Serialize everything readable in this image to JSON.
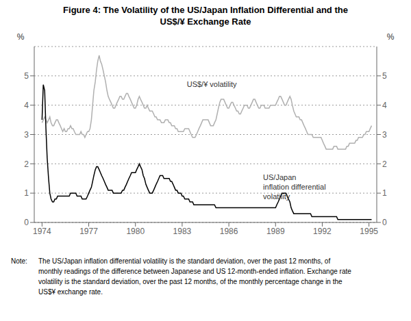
{
  "chart_data": {
    "type": "line",
    "title": "Figure 4: The Volatility of the US/Japan Inflation Differential and the\nUS$/¥ Exchange Rate",
    "ylabel": "%",
    "y2label": "%",
    "xlim": [
      1973.5,
      1995.5
    ],
    "xticks": [
      1974,
      1977,
      1980,
      1983,
      1986,
      1989,
      1992,
      1995
    ],
    "ylim": [
      0,
      6
    ],
    "yticks": [
      0,
      1,
      2,
      3,
      4,
      5
    ],
    "y2lim": [
      0,
      6
    ],
    "y2ticks": [
      0,
      1,
      2,
      3,
      4,
      5
    ],
    "grid": true,
    "annotations": [
      {
        "text": "US$/¥ volatility",
        "x": 1983.3,
        "y": 4.55
      },
      {
        "text": "US/Japan\ninflation differential\nvolatility",
        "x": 1988.2,
        "y": 1.7
      }
    ],
    "footnote": {
      "label": "Note:",
      "lines": [
        "The US/Japan inflation differential volatility is the standard deviation, over the past 12 months, of",
        "monthly readings of the difference between Japanese and US 12-month-ended inflation. Exchange rate",
        "volatility is the standard deviation, over the past 12 months, of the monthly percentage change in the",
        "US$¥ exchange rate."
      ]
    },
    "x": [
      1974.0,
      1974.08,
      1974.17,
      1974.25,
      1974.33,
      1974.42,
      1974.5,
      1974.58,
      1974.67,
      1974.75,
      1974.83,
      1974.92,
      1975.0,
      1975.08,
      1975.17,
      1975.25,
      1975.33,
      1975.42,
      1975.5,
      1975.58,
      1975.67,
      1975.75,
      1975.83,
      1975.92,
      1976.0,
      1976.08,
      1976.17,
      1976.25,
      1976.33,
      1976.42,
      1976.5,
      1976.58,
      1976.67,
      1976.75,
      1976.83,
      1976.92,
      1977.0,
      1977.08,
      1977.17,
      1977.25,
      1977.33,
      1977.42,
      1977.5,
      1977.58,
      1977.67,
      1977.75,
      1977.83,
      1977.92,
      1978.0,
      1978.08,
      1978.17,
      1978.25,
      1978.33,
      1978.42,
      1978.5,
      1978.58,
      1978.67,
      1978.75,
      1978.83,
      1978.92,
      1979.0,
      1979.08,
      1979.17,
      1979.25,
      1979.33,
      1979.42,
      1979.5,
      1979.58,
      1979.67,
      1979.75,
      1979.83,
      1979.92,
      1980.0,
      1980.08,
      1980.17,
      1980.25,
      1980.33,
      1980.42,
      1980.5,
      1980.58,
      1980.67,
      1980.75,
      1980.83,
      1980.92,
      1981.0,
      1981.08,
      1981.17,
      1981.25,
      1981.33,
      1981.42,
      1981.5,
      1981.58,
      1981.67,
      1981.75,
      1981.83,
      1981.92,
      1982.0,
      1982.08,
      1982.17,
      1982.25,
      1982.33,
      1982.42,
      1982.5,
      1982.58,
      1982.67,
      1982.75,
      1982.83,
      1982.92,
      1983.0,
      1983.08,
      1983.17,
      1983.25,
      1983.33,
      1983.42,
      1983.5,
      1983.58,
      1983.67,
      1983.75,
      1983.83,
      1983.92,
      1984.0,
      1984.08,
      1984.17,
      1984.25,
      1984.33,
      1984.42,
      1984.5,
      1984.58,
      1984.67,
      1984.75,
      1984.83,
      1984.92,
      1985.0,
      1985.08,
      1985.17,
      1985.25,
      1985.33,
      1985.42,
      1985.5,
      1985.58,
      1985.67,
      1985.75,
      1985.83,
      1985.92,
      1986.0,
      1986.08,
      1986.17,
      1986.25,
      1986.33,
      1986.42,
      1986.5,
      1986.58,
      1986.67,
      1986.75,
      1986.83,
      1986.92,
      1987.0,
      1987.08,
      1987.17,
      1987.25,
      1987.33,
      1987.42,
      1987.5,
      1987.58,
      1987.67,
      1987.75,
      1987.83,
      1987.92,
      1988.0,
      1988.08,
      1988.17,
      1988.25,
      1988.33,
      1988.42,
      1988.5,
      1988.58,
      1988.67,
      1988.75,
      1988.83,
      1988.92,
      1989.0,
      1989.08,
      1989.17,
      1989.25,
      1989.33,
      1989.42,
      1989.5,
      1989.58,
      1989.67,
      1989.75,
      1989.83,
      1989.92,
      1990.0,
      1990.08,
      1990.17,
      1990.25,
      1990.33,
      1990.42,
      1990.5,
      1990.58,
      1990.67,
      1990.75,
      1990.83,
      1990.92,
      1991.0,
      1991.08,
      1991.17,
      1991.25,
      1991.33,
      1991.42,
      1991.5,
      1991.58,
      1991.67,
      1991.75,
      1991.83,
      1991.92,
      1992.0,
      1992.08,
      1992.17,
      1992.25,
      1992.33,
      1992.42,
      1992.5,
      1992.58,
      1992.67,
      1992.75,
      1992.83,
      1992.92,
      1993.0,
      1993.08,
      1993.17,
      1993.25,
      1993.33,
      1993.42,
      1993.5,
      1993.58,
      1993.67,
      1993.75,
      1993.83,
      1993.92,
      1994.0,
      1994.08,
      1994.17,
      1994.25,
      1994.33,
      1994.42,
      1994.5,
      1994.58,
      1994.67,
      1994.75,
      1994.83,
      1994.92,
      1995.0,
      1995.08,
      1995.17
    ],
    "series": [
      {
        "color": "#b0b0b0",
        "values": [
          3.4,
          3.5,
          3.6,
          3.5,
          3.4,
          3.5,
          3.6,
          3.4,
          3.3,
          3.3,
          3.4,
          3.5,
          3.5,
          3.4,
          3.3,
          3.2,
          3.1,
          3.2,
          3.1,
          3.1,
          3.2,
          3.2,
          3.3,
          3.2,
          3.2,
          3.1,
          3.0,
          3.0,
          3.0,
          3.0,
          3.1,
          3.0,
          3.0,
          2.9,
          3.0,
          3.1,
          3.1,
          3.2,
          3.5,
          4.0,
          4.5,
          4.8,
          5.2,
          5.5,
          5.7,
          5.5,
          5.4,
          5.2,
          5.0,
          4.8,
          4.5,
          4.3,
          4.2,
          4.1,
          4.0,
          3.9,
          3.9,
          4.0,
          4.1,
          4.2,
          4.3,
          4.3,
          4.2,
          4.2,
          4.3,
          4.4,
          4.4,
          4.3,
          4.2,
          4.1,
          4.0,
          3.9,
          3.9,
          4.0,
          4.2,
          4.3,
          4.2,
          4.1,
          4.0,
          3.9,
          3.9,
          4.0,
          3.9,
          3.8,
          3.8,
          3.8,
          3.7,
          3.6,
          3.6,
          3.5,
          3.5,
          3.5,
          3.4,
          3.4,
          3.4,
          3.5,
          3.5,
          3.5,
          3.4,
          3.4,
          3.3,
          3.3,
          3.3,
          3.2,
          3.2,
          3.1,
          3.1,
          3.1,
          3.1,
          3.1,
          3.2,
          3.2,
          3.2,
          3.2,
          3.1,
          3.0,
          2.9,
          2.9,
          2.9,
          3.0,
          3.1,
          3.2,
          3.3,
          3.4,
          3.5,
          3.5,
          3.5,
          3.5,
          3.5,
          3.4,
          3.3,
          3.3,
          3.3,
          3.4,
          3.5,
          3.7,
          3.9,
          4.1,
          4.2,
          4.2,
          4.2,
          4.1,
          4.0,
          3.9,
          3.9,
          4.0,
          4.1,
          4.1,
          4.0,
          3.9,
          3.8,
          3.8,
          3.7,
          3.7,
          3.8,
          3.9,
          4.0,
          4.0,
          4.0,
          3.9,
          3.9,
          4.0,
          4.1,
          4.2,
          4.2,
          4.1,
          4.0,
          3.9,
          3.9,
          4.0,
          4.0,
          4.0,
          3.9,
          3.9,
          3.9,
          3.9,
          4.0,
          4.0,
          4.0,
          4.0,
          4.0,
          4.1,
          4.2,
          4.3,
          4.3,
          4.2,
          4.1,
          4.0,
          4.0,
          4.1,
          4.2,
          4.3,
          4.2,
          4.0,
          3.8,
          3.7,
          3.6,
          3.6,
          3.6,
          3.5,
          3.5,
          3.4,
          3.3,
          3.2,
          3.1,
          3.0,
          3.0,
          3.0,
          3.0,
          2.9,
          2.9,
          2.9,
          2.9,
          2.9,
          2.9,
          2.9,
          2.8,
          2.7,
          2.6,
          2.5,
          2.5,
          2.5,
          2.5,
          2.5,
          2.5,
          2.6,
          2.6,
          2.6,
          2.5,
          2.5,
          2.5,
          2.5,
          2.5,
          2.5,
          2.5,
          2.6,
          2.6,
          2.7,
          2.7,
          2.7,
          2.7,
          2.7,
          2.8,
          2.8,
          2.9,
          2.9,
          2.9,
          2.9,
          3.0,
          3.0,
          3.1,
          3.1,
          3.1,
          3.2,
          3.3
        ]
      },
      {
        "color": "#000000",
        "values": [
          3.5,
          4.7,
          4.5,
          3.2,
          2.2,
          1.5,
          1.0,
          0.8,
          0.7,
          0.7,
          0.8,
          0.8,
          0.9,
          0.9,
          0.9,
          0.9,
          0.9,
          0.9,
          0.9,
          0.9,
          0.9,
          0.9,
          1.0,
          1.0,
          1.0,
          1.0,
          1.0,
          0.9,
          0.9,
          0.9,
          0.9,
          0.8,
          0.8,
          0.8,
          0.8,
          0.9,
          1.0,
          1.1,
          1.2,
          1.4,
          1.6,
          1.8,
          1.9,
          1.9,
          1.8,
          1.7,
          1.6,
          1.5,
          1.4,
          1.3,
          1.2,
          1.1,
          1.1,
          1.1,
          1.1,
          1.0,
          1.0,
          1.0,
          1.0,
          1.0,
          1.0,
          1.0,
          1.1,
          1.1,
          1.2,
          1.3,
          1.4,
          1.5,
          1.6,
          1.7,
          1.7,
          1.7,
          1.7,
          1.8,
          1.9,
          2.0,
          1.9,
          1.8,
          1.6,
          1.5,
          1.3,
          1.2,
          1.1,
          1.0,
          1.0,
          1.0,
          1.1,
          1.2,
          1.3,
          1.4,
          1.5,
          1.6,
          1.6,
          1.6,
          1.5,
          1.5,
          1.5,
          1.5,
          1.5,
          1.4,
          1.4,
          1.3,
          1.2,
          1.1,
          1.1,
          1.0,
          1.0,
          1.0,
          0.9,
          0.9,
          0.8,
          0.8,
          0.8,
          0.8,
          0.7,
          0.7,
          0.7,
          0.6,
          0.6,
          0.6,
          0.6,
          0.6,
          0.6,
          0.6,
          0.6,
          0.6,
          0.6,
          0.6,
          0.6,
          0.6,
          0.6,
          0.6,
          0.6,
          0.6,
          0.5,
          0.5,
          0.5,
          0.5,
          0.5,
          0.5,
          0.5,
          0.5,
          0.5,
          0.5,
          0.5,
          0.5,
          0.5,
          0.5,
          0.5,
          0.5,
          0.5,
          0.5,
          0.5,
          0.5,
          0.5,
          0.5,
          0.5,
          0.5,
          0.5,
          0.5,
          0.5,
          0.5,
          0.5,
          0.5,
          0.5,
          0.5,
          0.5,
          0.5,
          0.5,
          0.5,
          0.5,
          0.5,
          0.5,
          0.5,
          0.5,
          0.5,
          0.5,
          0.5,
          0.5,
          0.5,
          0.5,
          0.6,
          0.7,
          0.8,
          0.9,
          1.0,
          1.0,
          1.0,
          1.0,
          0.9,
          0.8,
          0.7,
          0.5,
          0.4,
          0.3,
          0.3,
          0.3,
          0.3,
          0.3,
          0.3,
          0.3,
          0.3,
          0.3,
          0.3,
          0.3,
          0.3,
          0.3,
          0.3,
          0.2,
          0.2,
          0.2,
          0.2,
          0.2,
          0.2,
          0.2,
          0.2,
          0.2,
          0.2,
          0.2,
          0.2,
          0.2,
          0.2,
          0.2,
          0.2,
          0.2,
          0.2,
          0.2,
          0.2,
          0.1,
          0.1,
          0.1,
          0.1,
          0.1,
          0.1,
          0.1,
          0.1,
          0.1,
          0.1,
          0.1,
          0.1,
          0.1,
          0.1,
          0.1,
          0.1,
          0.1,
          0.1,
          0.1,
          0.1,
          0.1,
          0.1,
          0.1,
          0.1,
          0.1,
          0.1,
          0.1
        ]
      }
    ]
  }
}
